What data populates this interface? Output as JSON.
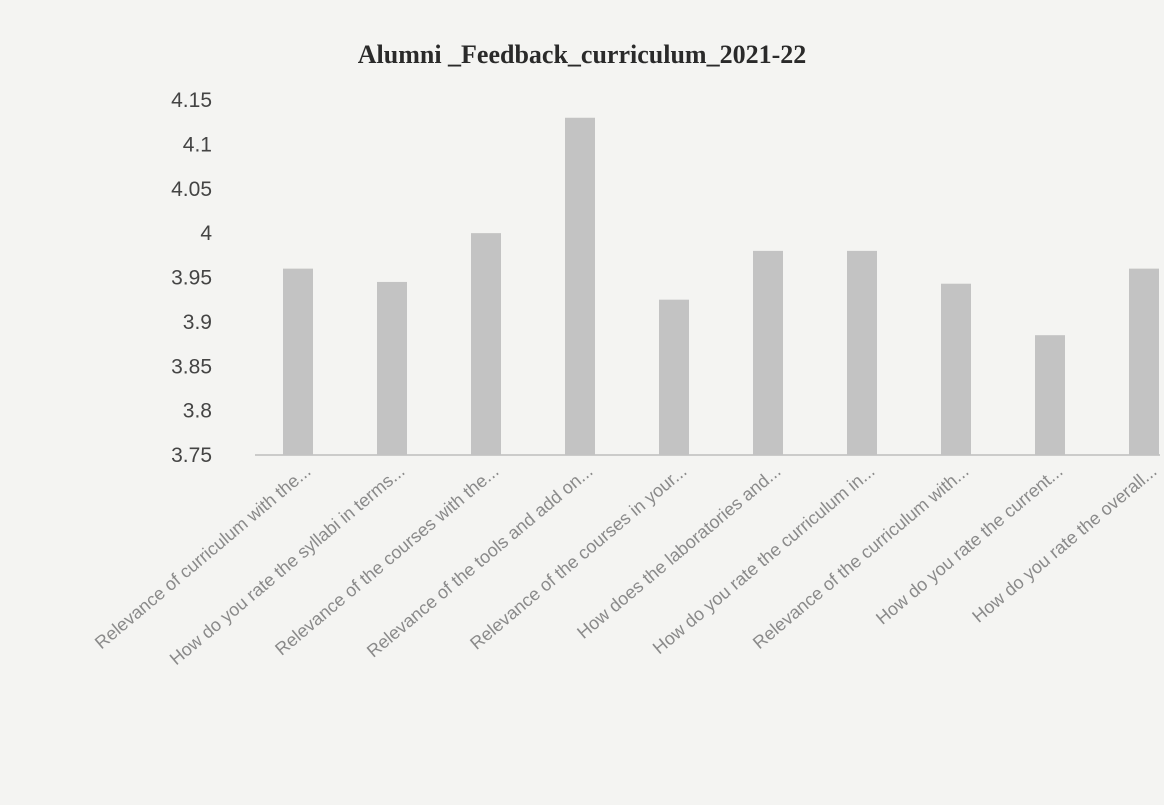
{
  "chart_data": {
    "type": "bar",
    "title": "Alumni _Feedback_curriculum_2021-22",
    "xlabel": "",
    "ylabel": "",
    "categories": [
      "Relevance of curriculum with the...",
      "How do you rate the syllabi in terms...",
      "Relevance of the courses with the...",
      "Relevance of the tools and add on...",
      "Relevance of the courses in your...",
      "How does the laboratories and...",
      "How do you rate the curriculum in...",
      "Relevance of the curriculum with...",
      "How do you rate the current...",
      "How do you rate the overall..."
    ],
    "values": [
      3.96,
      3.945,
      4.0,
      4.13,
      3.925,
      3.98,
      3.98,
      3.943,
      3.885,
      3.96
    ],
    "ylim": [
      3.75,
      4.15
    ],
    "yticks": [
      "3.75",
      "3.8",
      "3.85",
      "3.9",
      "3.95",
      "4",
      "4.05",
      "4.1",
      "4.15"
    ],
    "grid": false,
    "legend": "none",
    "colors": {
      "bar": "#c3c3c3",
      "axis": "#bdbdbd"
    }
  }
}
